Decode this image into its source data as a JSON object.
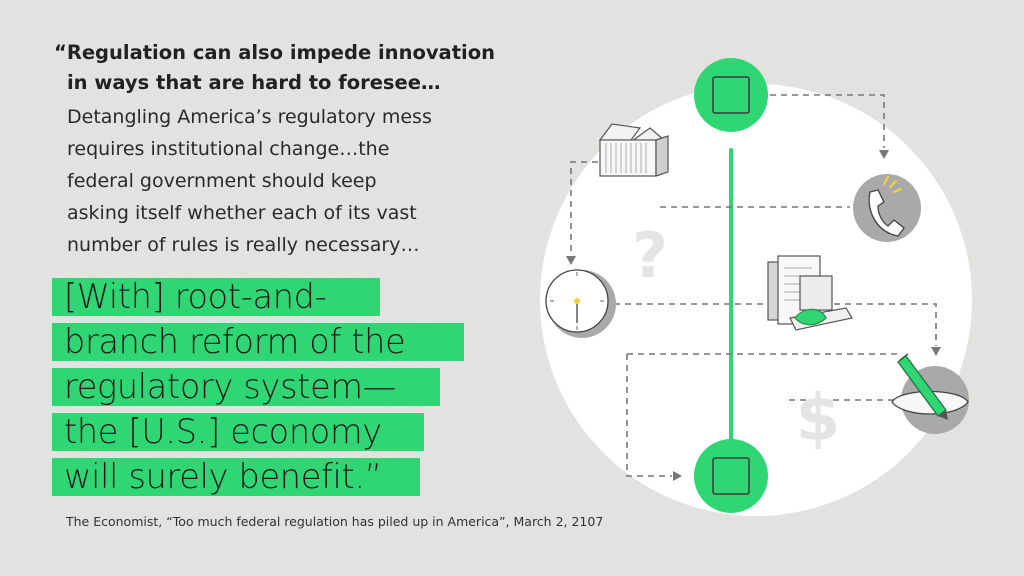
{
  "quote": {
    "bold_line_1": "“Regulation can also impede innovation",
    "bold_line_2": "in ways that are hard to foresee…",
    "body_lines": [
      "Detangling America’s regulatory mess",
      "requires institutional change…the",
      "federal government should keep",
      "asking itself whether each of its vast",
      "number of rules is really necessary…"
    ],
    "highlight_lines": [
      "[With] root-and-",
      "branch reform of the",
      "regulatory system—",
      "the [U.S.] economy",
      "will surely benefit.”"
    ]
  },
  "citation": "The Economist, “Too much federal regulation has piled up in America”, March 2, 2107",
  "illustration": {
    "question_mark": "?",
    "dollar_sign": "$",
    "icons": [
      "gift-box-icon",
      "phone-icon",
      "clock-icon",
      "documents-icon",
      "pen-icon"
    ]
  },
  "colors": {
    "accent_green": "#2fd673",
    "background": "#e6e6e4",
    "circle_white": "#ffffff",
    "icon_gray": "#9a9a9a",
    "text": "#222222"
  }
}
